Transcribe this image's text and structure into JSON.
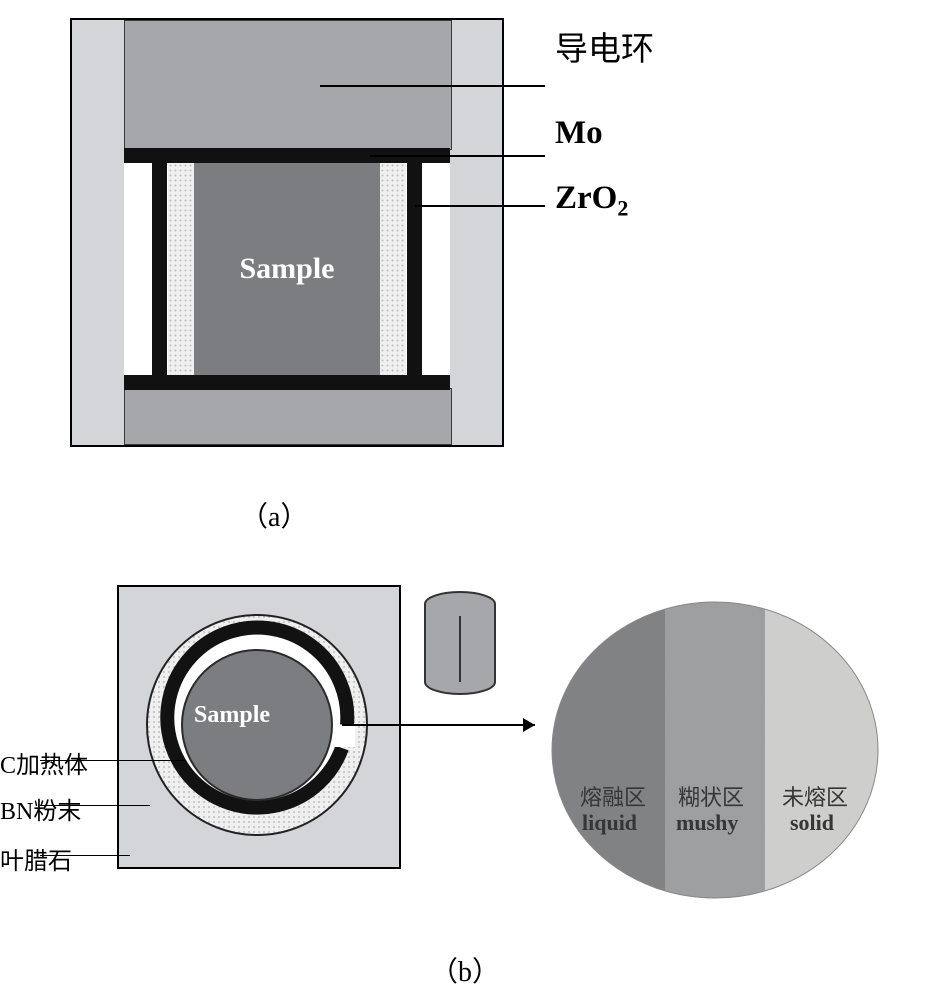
{
  "fig_a": {
    "sample_label": "Sample",
    "labels": {
      "ring": "导电环",
      "mo": "Mo",
      "zro2": "ZrO",
      "zro2_sub": "2"
    },
    "caption": "（a）",
    "colors": {
      "outer_bg": "#d3d5d8",
      "ring_bg": "#a5a7aa",
      "mo_bg": "#111111",
      "zro_bg": "#111111",
      "sample_bg": "#7b7d80",
      "sample_text": "#ffffff",
      "dotted_bg": "#efefef",
      "dot_color": "#bfbfbf"
    }
  },
  "fig_b": {
    "sample_label": "Sample",
    "labels": {
      "c_heater": "C加热体",
      "bn": "BN粉末",
      "pyro": "叶腊石"
    },
    "caption": "（b）",
    "disc_labels": {
      "liquid_cn": "熔融区",
      "liquid_en": "liquid",
      "mushy_cn": "糊状区",
      "mushy_en": "mushy",
      "solid_cn": "未熔区",
      "solid_en": "solid"
    },
    "circle": {
      "outer_r": 125,
      "bn_r": 110,
      "heater_r": 90,
      "sample_r": 75,
      "colors": {
        "outer": "#d3d5d8",
        "bn_fill": "#efefef",
        "bn_dot": "#bfbfbf",
        "heater_stroke": "#121212",
        "heater_fill": "none",
        "sample_fill": "#7b7d80"
      }
    },
    "cylinder_color": "#a5a7aa",
    "disc_colors": {
      "liquid": "#7e7f82",
      "mushy": "#9c9d9f",
      "solid": "#cfcfce",
      "text": "#363636"
    }
  }
}
